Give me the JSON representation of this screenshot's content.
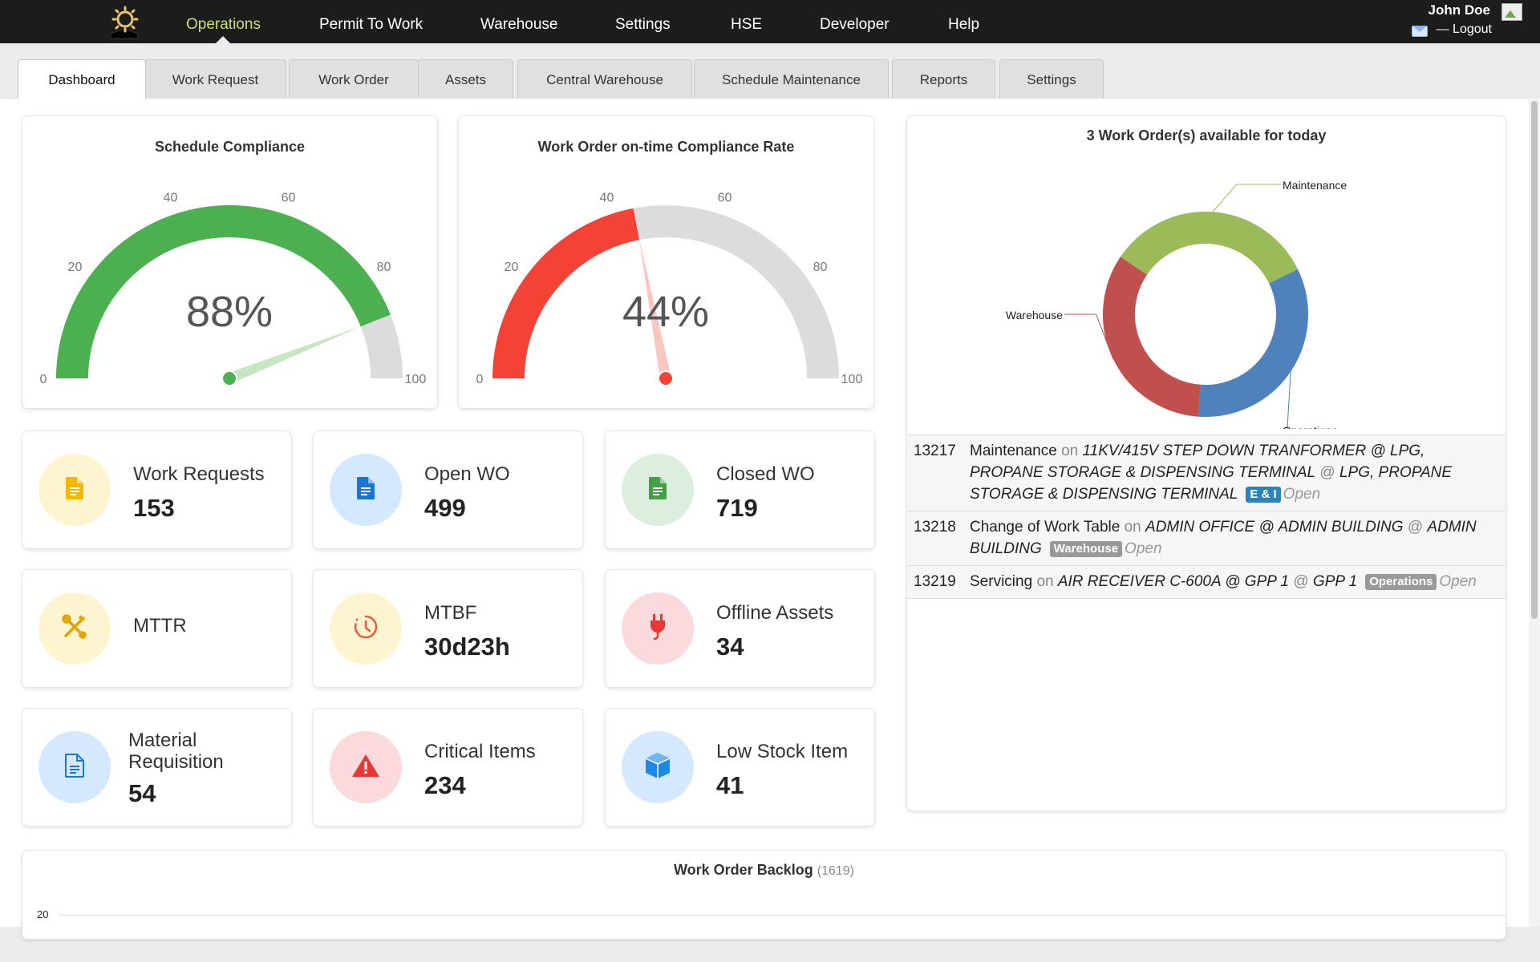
{
  "nav": {
    "items": [
      "Operations",
      "Permit To Work",
      "Warehouse",
      "Settings",
      "HSE",
      "Developer",
      "Help"
    ],
    "active_color": "#c7e06a",
    "user": "John Doe",
    "logout": "— Logout"
  },
  "tabs": [
    "Dashboard",
    "Work Request",
    "Work Order",
    "Assets",
    "Central Warehouse",
    "Schedule Maintenance",
    "Reports",
    "Settings"
  ],
  "gauges": [
    {
      "title": "Schedule Compliance",
      "value": 88,
      "display": "88%",
      "color": "#4caf50",
      "needle_color": "#b7e0b0",
      "ticks": [
        "0",
        "20",
        "40",
        "60",
        "80",
        "100"
      ]
    },
    {
      "title": "Work Order on-time Compliance Rate",
      "value": 44,
      "display": "44%",
      "color": "#f44336",
      "needle_color": "#f7b8b2",
      "ticks": [
        "0",
        "20",
        "40",
        "60",
        "80",
        "100"
      ]
    }
  ],
  "stats": [
    {
      "label": "Work Requests",
      "value": "153",
      "icon": "document-icon",
      "icon_color": "#f5b800",
      "bg": "#fff4d0"
    },
    {
      "label": "Open WO",
      "value": "499",
      "icon": "document-icon",
      "icon_color": "#1976d2",
      "bg": "#d4e8ff"
    },
    {
      "label": "Closed WO",
      "value": "719",
      "icon": "document-icon",
      "icon_color": "#43a047",
      "bg": "#dcefdf"
    },
    {
      "label": "MTTR",
      "value": "",
      "icon": "tools-icon",
      "icon_color": "#e2a400",
      "bg": "#fff4d0"
    },
    {
      "label": "MTBF",
      "value": "30d23h",
      "icon": "clock-icon",
      "icon_color": "#e65c45",
      "bg": "#fff4d0"
    },
    {
      "label": "Offline Assets",
      "value": "34",
      "icon": "plug-icon",
      "icon_color": "#e53935",
      "bg": "#fadadd"
    },
    {
      "label": "Material Requisition",
      "value": "54",
      "icon": "document-outline-icon",
      "icon_color": "#1976d2",
      "bg": "#d4e8ff"
    },
    {
      "label": "Critical Items",
      "value": "234",
      "icon": "warning-icon",
      "icon_color": "#e53935",
      "bg": "#fadadd"
    },
    {
      "label": "Low Stock Item",
      "value": "41",
      "icon": "cube-icon",
      "icon_color": "#1e88e5",
      "bg": "#d4e8ff"
    }
  ],
  "work_orders": {
    "title": "3 Work Order(s) available for today",
    "chart_data": {
      "type": "pie",
      "labels": [
        "Maintenance",
        "Operations",
        "Warehouse"
      ],
      "values": [
        1,
        1,
        1
      ],
      "colors": [
        "#9bbb59",
        "#4f81bd",
        "#c0504d"
      ]
    },
    "rows": [
      {
        "id": "13217",
        "type": "Maintenance",
        "on": "on",
        "asset": "11KV/415V STEP DOWN TRANFORMER @ LPG, PROPANE STORAGE & DISPENSING TERMINAL",
        "at": "@",
        "location": "LPG, PROPANE STORAGE & DISPENSING TERMINAL",
        "badge": "E & I",
        "badge_color": "#2b83ba",
        "status": "Open"
      },
      {
        "id": "13218",
        "type": "Change of Work Table",
        "on": "on",
        "asset": "ADMIN OFFICE @ ADMIN BUILDING",
        "at": "@",
        "location": "ADMIN BUILDING",
        "badge": "Warehouse",
        "badge_color": "#999999",
        "status": "Open"
      },
      {
        "id": "13219",
        "type": "Servicing",
        "on": "on",
        "asset": "AIR RECEIVER C-600A @ GPP 1",
        "at": "@",
        "location": "GPP 1",
        "badge": "Operations",
        "badge_color": "#999999",
        "status": "Open"
      }
    ]
  },
  "backlog": {
    "title": "Work Order Backlog",
    "count": "(1619)",
    "tick": "20"
  }
}
